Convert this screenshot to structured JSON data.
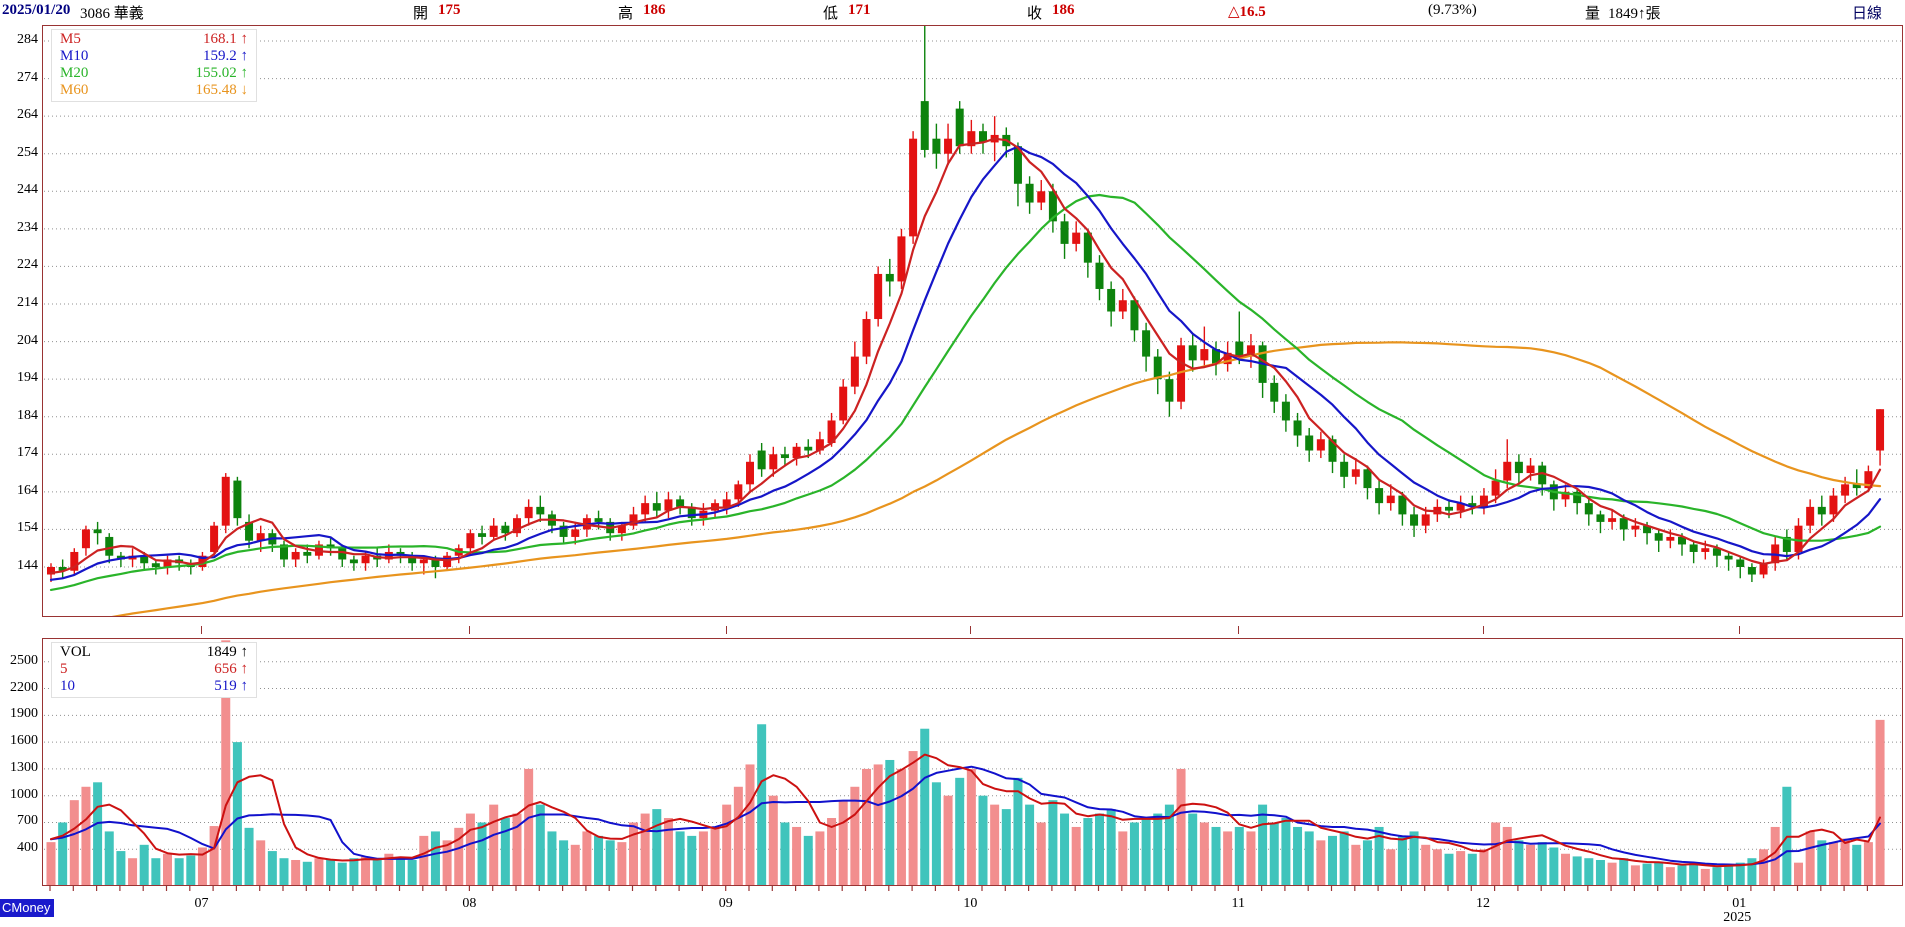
{
  "header": {
    "date": "2025/01/20",
    "stock": "3086 華義",
    "open_label": "開",
    "open_value": "175",
    "high_label": "高",
    "high_value": "186",
    "low_label": "低",
    "low_value": "171",
    "close_label": "收",
    "close_value": "186",
    "change": "△16.5",
    "change_pct": "(9.73%)",
    "volume_label": "量",
    "volume_value": "1849↑張",
    "period": "日線"
  },
  "logo": "CMoney",
  "price_legend": [
    {
      "label": "M5",
      "value": "168.1",
      "dir": "↑",
      "color": "#cc2222"
    },
    {
      "label": "M10",
      "value": "159.2",
      "dir": "↑",
      "color": "#1616c8"
    },
    {
      "label": "M20",
      "value": "155.02",
      "dir": "↑",
      "color": "#2ab42a"
    },
    {
      "label": "M60",
      "value": "165.48",
      "dir": "↓",
      "color": "#e8941e"
    }
  ],
  "volume_legend": [
    {
      "label": "VOL",
      "value": "1849",
      "dir": "↑",
      "color": "#000000"
    },
    {
      "label": "5",
      "value": "656",
      "dir": "↑",
      "color": "#cc2222"
    },
    {
      "label": "10",
      "value": "519",
      "dir": "↑",
      "color": "#1616c8"
    }
  ],
  "chart_data": {
    "type": "candlestick_with_volume",
    "title": "3086 華義 日線",
    "price_axis_ticks": [
      284,
      274,
      264,
      254,
      244,
      234,
      224,
      214,
      204,
      194,
      184,
      174,
      164,
      154,
      144
    ],
    "price_axis_range": [
      130.5,
      288
    ],
    "volume_axis_ticks": [
      2500,
      2200,
      1900,
      1600,
      1300,
      1000,
      700,
      400
    ],
    "volume_axis_range": [
      0,
      2755
    ],
    "grid": "dotted-horizontal",
    "ma_periods": [
      5,
      10,
      20,
      60
    ],
    "volume_ma_periods": [
      5,
      10
    ],
    "months": [
      {
        "label": "07",
        "start_index": 13
      },
      {
        "label": "08",
        "start_index": 36
      },
      {
        "label": "09",
        "start_index": 58
      },
      {
        "label": "10",
        "start_index": 79
      },
      {
        "label": "11",
        "start_index": 102
      },
      {
        "label": "12",
        "start_index": 123
      },
      {
        "label": "01",
        "start_index": 145,
        "year": "2025"
      }
    ],
    "ohlcv_note": "each row is [open,high,low,close,volume(張)] per trading day, 2024/06 → 2025/01/20 (estimated from chart)",
    "candles": [
      [
        142,
        145,
        140,
        144,
        480
      ],
      [
        144,
        146,
        141,
        143,
        700
      ],
      [
        143,
        149,
        142,
        148,
        950
      ],
      [
        149,
        155,
        147,
        154,
        1100
      ],
      [
        154,
        156,
        150,
        153,
        1150
      ],
      [
        152,
        153,
        145,
        147,
        600
      ],
      [
        147,
        148,
        144,
        146,
        380
      ],
      [
        146,
        149,
        144,
        147,
        300
      ],
      [
        147,
        148,
        143,
        145,
        450
      ],
      [
        145,
        146,
        142,
        144,
        300
      ],
      [
        144,
        147,
        142,
        146,
        350
      ],
      [
        146,
        147,
        143,
        145,
        300
      ],
      [
        145,
        146,
        142,
        144,
        330
      ],
      [
        144,
        148,
        143,
        147,
        420
      ],
      [
        148,
        156,
        147,
        155,
        660
      ],
      [
        155,
        169,
        153,
        168,
        2740
      ],
      [
        167,
        168,
        155,
        157,
        1600
      ],
      [
        156,
        158,
        149,
        151,
        640
      ],
      [
        151,
        155,
        148,
        153,
        500
      ],
      [
        153,
        154,
        148,
        150,
        380
      ],
      [
        150,
        151,
        144,
        146,
        300
      ],
      [
        146,
        149,
        144,
        148,
        280
      ],
      [
        148,
        150,
        145,
        147,
        260
      ],
      [
        147,
        151,
        146,
        150,
        300
      ],
      [
        150,
        152,
        147,
        149,
        280
      ],
      [
        149,
        150,
        144,
        146,
        250
      ],
      [
        146,
        147,
        143,
        145,
        300
      ],
      [
        145,
        148,
        143,
        147,
        320
      ],
      [
        147,
        149,
        144,
        146,
        280
      ],
      [
        146,
        150,
        145,
        148,
        350
      ],
      [
        148,
        149,
        145,
        147,
        300
      ],
      [
        147,
        148,
        143,
        145,
        280
      ],
      [
        145,
        147,
        142,
        146,
        550
      ],
      [
        146,
        147,
        141,
        144,
        600
      ],
      [
        144,
        148,
        143,
        147,
        500
      ],
      [
        147,
        150,
        145,
        149,
        640
      ],
      [
        149,
        154,
        147,
        153,
        800
      ],
      [
        153,
        155,
        150,
        152,
        700
      ],
      [
        152,
        157,
        151,
        155,
        900
      ],
      [
        155,
        156,
        151,
        153,
        750
      ],
      [
        153,
        158,
        152,
        157,
        800
      ],
      [
        157,
        162,
        155,
        160,
        1300
      ],
      [
        160,
        163,
        156,
        158,
        900
      ],
      [
        158,
        159,
        153,
        155,
        600
      ],
      [
        155,
        156,
        150,
        152,
        500
      ],
      [
        152,
        156,
        150,
        154,
        450
      ],
      [
        154,
        158,
        152,
        157,
        600
      ],
      [
        157,
        159,
        154,
        156,
        550
      ],
      [
        156,
        157,
        151,
        153,
        500
      ],
      [
        153,
        156,
        151,
        155,
        480
      ],
      [
        155,
        160,
        154,
        158,
        700
      ],
      [
        158,
        163,
        156,
        161,
        800
      ],
      [
        161,
        164,
        157,
        159,
        850
      ],
      [
        159,
        164,
        157,
        162,
        750
      ],
      [
        162,
        163,
        158,
        160,
        600
      ],
      [
        160,
        161,
        155,
        157,
        550
      ],
      [
        157,
        161,
        155,
        159,
        600
      ],
      [
        159,
        162,
        157,
        161,
        650
      ],
      [
        160,
        164,
        158,
        162,
        900
      ],
      [
        162,
        167,
        160,
        166,
        1100
      ],
      [
        166,
        174,
        164,
        172,
        1350
      ],
      [
        175,
        177,
        168,
        170,
        1800
      ],
      [
        170,
        176,
        168,
        174,
        1000
      ],
      [
        174,
        176,
        171,
        173,
        700
      ],
      [
        173,
        177,
        171,
        176,
        650
      ],
      [
        176,
        178,
        173,
        175,
        550
      ],
      [
        175,
        180,
        174,
        178,
        600
      ],
      [
        177,
        185,
        176,
        183,
        750
      ],
      [
        183,
        194,
        182,
        192,
        950
      ],
      [
        192,
        204,
        190,
        200,
        1100
      ],
      [
        200,
        212,
        198,
        210,
        1300
      ],
      [
        210,
        224,
        208,
        222,
        1350
      ],
      [
        222,
        226,
        216,
        220,
        1400
      ],
      [
        220,
        234,
        218,
        232,
        1300
      ],
      [
        232,
        260,
        230,
        258,
        1500
      ],
      [
        268,
        288,
        253,
        255,
        1750
      ],
      [
        258,
        262,
        250,
        254,
        1150
      ],
      [
        254,
        262,
        251,
        258,
        1000
      ],
      [
        266,
        268,
        254,
        256,
        1200
      ],
      [
        256,
        263,
        254,
        260,
        1300
      ],
      [
        260,
        262,
        254,
        257,
        1000
      ],
      [
        257,
        264,
        252,
        259,
        900
      ],
      [
        259,
        261,
        253,
        256,
        850
      ],
      [
        256,
        257,
        240,
        246,
        1200
      ],
      [
        246,
        248,
        238,
        241,
        900
      ],
      [
        241,
        247,
        239,
        244,
        700
      ],
      [
        244,
        246,
        233,
        236,
        950
      ],
      [
        236,
        238,
        226,
        230,
        800
      ],
      [
        230,
        236,
        228,
        233,
        650
      ],
      [
        233,
        234,
        221,
        225,
        750
      ],
      [
        225,
        227,
        215,
        218,
        800
      ],
      [
        218,
        220,
        208,
        212,
        850
      ],
      [
        212,
        218,
        210,
        215,
        600
      ],
      [
        215,
        216,
        204,
        207,
        700
      ],
      [
        207,
        209,
        196,
        200,
        750
      ],
      [
        200,
        202,
        190,
        194,
        800
      ],
      [
        194,
        196,
        184,
        188,
        900
      ],
      [
        188,
        205,
        186,
        203,
        1300
      ],
      [
        203,
        206,
        196,
        199,
        800
      ],
      [
        199,
        208,
        197,
        202,
        700
      ],
      [
        202,
        204,
        195,
        198,
        650
      ],
      [
        198,
        204,
        196,
        201,
        600
      ],
      [
        204,
        212,
        198,
        200,
        650
      ],
      [
        200,
        206,
        197,
        203,
        600
      ],
      [
        203,
        204,
        189,
        193,
        900
      ],
      [
        193,
        195,
        185,
        188,
        700
      ],
      [
        188,
        190,
        180,
        183,
        750
      ],
      [
        183,
        185,
        176,
        179,
        650
      ],
      [
        179,
        181,
        172,
        175,
        600
      ],
      [
        175,
        180,
        173,
        178,
        500
      ],
      [
        178,
        179,
        169,
        172,
        550
      ],
      [
        172,
        174,
        165,
        168,
        600
      ],
      [
        168,
        173,
        166,
        170,
        450
      ],
      [
        170,
        171,
        162,
        165,
        500
      ],
      [
        165,
        167,
        158,
        161,
        650
      ],
      [
        161,
        166,
        159,
        163,
        400
      ],
      [
        163,
        164,
        155,
        158,
        550
      ],
      [
        158,
        160,
        152,
        155,
        600
      ],
      [
        155,
        160,
        153,
        158,
        450
      ],
      [
        158,
        162,
        156,
        160,
        400
      ],
      [
        160,
        162,
        157,
        159,
        350
      ],
      [
        159,
        163,
        157,
        161,
        380
      ],
      [
        161,
        163,
        158,
        160,
        350
      ],
      [
        160,
        165,
        158,
        163,
        400
      ],
      [
        163,
        170,
        161,
        167,
        700
      ],
      [
        167,
        178,
        165,
        172,
        650
      ],
      [
        172,
        174,
        166,
        169,
        500
      ],
      [
        169,
        173,
        167,
        171,
        450
      ],
      [
        171,
        172,
        163,
        166,
        480
      ],
      [
        166,
        167,
        159,
        162,
        420
      ],
      [
        162,
        166,
        160,
        164,
        350
      ],
      [
        164,
        165,
        158,
        161,
        320
      ],
      [
        161,
        162,
        155,
        158,
        300
      ],
      [
        158,
        159,
        153,
        156,
        280
      ],
      [
        156,
        159,
        154,
        157,
        250
      ],
      [
        157,
        158,
        151,
        154,
        300
      ],
      [
        154,
        157,
        152,
        155,
        220
      ],
      [
        155,
        156,
        150,
        153,
        240
      ],
      [
        153,
        154,
        148,
        151,
        260
      ],
      [
        151,
        154,
        149,
        152,
        200
      ],
      [
        152,
        153,
        147,
        150,
        220
      ],
      [
        150,
        151,
        145,
        148,
        250
      ],
      [
        148,
        151,
        146,
        149,
        180
      ],
      [
        149,
        150,
        144,
        147,
        200
      ],
      [
        147,
        148,
        143,
        146,
        230
      ],
      [
        146,
        147,
        141,
        144,
        250
      ],
      [
        144,
        145,
        140,
        142,
        300
      ],
      [
        142,
        146,
        141,
        145,
        400
      ],
      [
        145,
        152,
        143,
        150,
        650
      ],
      [
        152,
        154,
        146,
        148,
        1100
      ],
      [
        148,
        157,
        146,
        155,
        250
      ],
      [
        155,
        162,
        153,
        160,
        600
      ],
      [
        160,
        163,
        155,
        158,
        500
      ],
      [
        158,
        165,
        156,
        163,
        480
      ],
      [
        163,
        168,
        161,
        166,
        520
      ],
      [
        166,
        170,
        163,
        165,
        450
      ],
      [
        165,
        171,
        164,
        169.5,
        480
      ],
      [
        175,
        186,
        171,
        186,
        1849
      ]
    ],
    "colors": {
      "up": "#e31212",
      "down": "#0d830d",
      "ma5": "#cc2222",
      "ma10": "#1616c8",
      "ma20": "#2ab42a",
      "ma60": "#e8941e",
      "vol_up": "#f28e8e",
      "vol_down": "#40c4bc",
      "vol_ma5": "#cc1111",
      "vol_ma10": "#1111cc",
      "grid": "#909090",
      "panel_border": "#993333"
    }
  }
}
